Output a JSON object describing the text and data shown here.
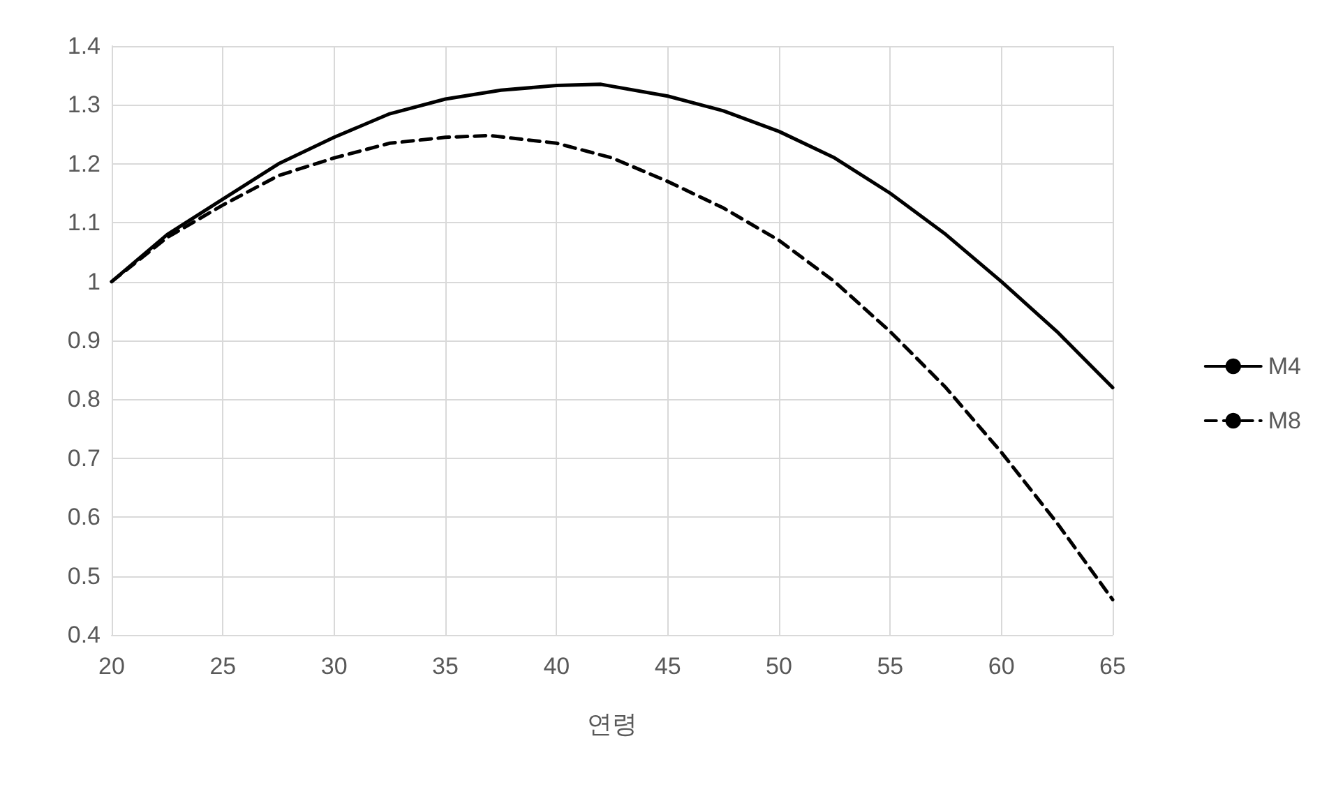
{
  "chart_data": {
    "type": "line",
    "xlabel": "연령",
    "xlim": [
      20,
      65
    ],
    "xticks": [
      20,
      25,
      30,
      35,
      40,
      45,
      50,
      55,
      60,
      65
    ],
    "ylim": [
      0.4,
      1.4
    ],
    "yticks": [
      0.4,
      0.5,
      0.6,
      0.7,
      0.8,
      0.9,
      1,
      1.1,
      1.2,
      1.3,
      1.4
    ],
    "grid": true,
    "legend": "right",
    "marker": "none",
    "series": [
      {
        "name": "M4",
        "color": "#000000",
        "line_style": "solid",
        "x": [
          20,
          22.5,
          25,
          27.5,
          30,
          32.5,
          35,
          37.5,
          40,
          42,
          45,
          47.5,
          50,
          52.5,
          55,
          57.5,
          60,
          62.5,
          65
        ],
        "values": [
          1.0,
          1.08,
          1.14,
          1.2,
          1.245,
          1.285,
          1.31,
          1.325,
          1.333,
          1.335,
          1.315,
          1.29,
          1.255,
          1.21,
          1.15,
          1.08,
          1.0,
          0.915,
          0.82
        ]
      },
      {
        "name": "M8",
        "color": "#000000",
        "line_style": "dashed",
        "x": [
          20,
          22.5,
          25,
          27.5,
          30,
          32.5,
          35,
          37,
          40,
          42.5,
          45,
          47.5,
          50,
          52.5,
          55,
          57.5,
          60,
          62.5,
          65
        ],
        "values": [
          1.0,
          1.075,
          1.13,
          1.18,
          1.21,
          1.235,
          1.245,
          1.248,
          1.235,
          1.21,
          1.17,
          1.125,
          1.07,
          1.0,
          0.915,
          0.82,
          0.71,
          0.59,
          0.46
        ]
      }
    ]
  }
}
